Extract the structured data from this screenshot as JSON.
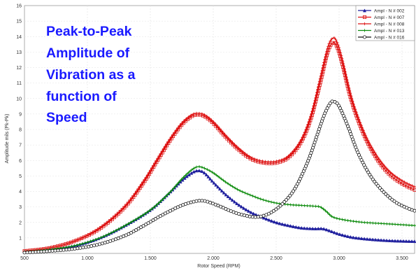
{
  "chart_data": {
    "type": "line",
    "title": "",
    "xlabel": "Rotor Speed (RPM)",
    "ylabel": "Amplitude mils (Pk-Pk)",
    "xlim": [
      500,
      3600
    ],
    "ylim": [
      0,
      16
    ],
    "x_ticks": [
      500,
      1000,
      1500,
      2000,
      2500,
      3000,
      3500
    ],
    "x_tick_labels": [
      "500",
      "1.000",
      "1.500",
      "2.000",
      "2.500",
      "3.000",
      "3.500"
    ],
    "y_ticks": [
      1,
      2,
      3,
      4,
      5,
      6,
      7,
      8,
      9,
      10,
      11,
      12,
      13,
      14,
      15,
      16
    ],
    "y_tick_labels": [
      "1",
      "2",
      "3",
      "4",
      "5",
      "6",
      "7",
      "8",
      "9",
      "10",
      "11",
      "12",
      "13",
      "14",
      "15",
      "16"
    ],
    "grid": true,
    "legend_position": "top-right",
    "annotation": {
      "lines": [
        "Peak-to-Peak",
        "Amplitude of",
        "Vibration as a",
        "function of",
        "Speed"
      ],
      "color": "#1a1aff"
    },
    "series": [
      {
        "name": "Ampl - N # 002",
        "color": "#1f1f9e",
        "marker": "triangle",
        "points": [
          [
            500,
            0.1
          ],
          [
            700,
            0.25
          ],
          [
            900,
            0.5
          ],
          [
            1100,
            1.0
          ],
          [
            1300,
            1.8
          ],
          [
            1500,
            2.8
          ],
          [
            1650,
            3.9
          ],
          [
            1750,
            4.7
          ],
          [
            1830,
            5.2
          ],
          [
            1880,
            5.35
          ],
          [
            1930,
            5.2
          ],
          [
            2000,
            4.6
          ],
          [
            2100,
            3.8
          ],
          [
            2200,
            3.15
          ],
          [
            2300,
            2.65
          ],
          [
            2400,
            2.3
          ],
          [
            2500,
            2.0
          ],
          [
            2600,
            1.8
          ],
          [
            2700,
            1.65
          ],
          [
            2800,
            1.6
          ],
          [
            2870,
            1.6
          ],
          [
            2930,
            1.45
          ],
          [
            3000,
            1.25
          ],
          [
            3100,
            1.05
          ],
          [
            3200,
            0.95
          ],
          [
            3300,
            0.88
          ],
          [
            3400,
            0.83
          ],
          [
            3500,
            0.8
          ],
          [
            3600,
            0.78
          ]
        ]
      },
      {
        "name": "Ampl - N # 007",
        "color": "#dd1111",
        "marker": "square",
        "points": [
          [
            500,
            0.15
          ],
          [
            700,
            0.35
          ],
          [
            900,
            0.8
          ],
          [
            1100,
            1.6
          ],
          [
            1300,
            3.0
          ],
          [
            1450,
            4.6
          ],
          [
            1550,
            5.9
          ],
          [
            1650,
            7.2
          ],
          [
            1750,
            8.3
          ],
          [
            1830,
            8.85
          ],
          [
            1880,
            8.95
          ],
          [
            1930,
            8.85
          ],
          [
            2000,
            8.4
          ],
          [
            2100,
            7.5
          ],
          [
            2200,
            6.7
          ],
          [
            2300,
            6.1
          ],
          [
            2400,
            5.85
          ],
          [
            2500,
            5.85
          ],
          [
            2600,
            6.2
          ],
          [
            2700,
            7.2
          ],
          [
            2780,
            8.8
          ],
          [
            2850,
            11.0
          ],
          [
            2910,
            13.0
          ],
          [
            2950,
            13.6
          ],
          [
            2980,
            13.4
          ],
          [
            3020,
            12.4
          ],
          [
            3100,
            9.8
          ],
          [
            3200,
            7.6
          ],
          [
            3300,
            6.1
          ],
          [
            3400,
            5.1
          ],
          [
            3500,
            4.5
          ],
          [
            3600,
            4.1
          ]
        ]
      },
      {
        "name": "Ampl - N # 008",
        "color": "#dd1111",
        "marker": "plus",
        "points": [
          [
            500,
            0.15
          ],
          [
            700,
            0.35
          ],
          [
            900,
            0.8
          ],
          [
            1100,
            1.65
          ],
          [
            1300,
            3.05
          ],
          [
            1450,
            4.7
          ],
          [
            1550,
            6.0
          ],
          [
            1650,
            7.3
          ],
          [
            1750,
            8.4
          ],
          [
            1830,
            8.95
          ],
          [
            1880,
            9.05
          ],
          [
            1930,
            8.95
          ],
          [
            2000,
            8.5
          ],
          [
            2100,
            7.6
          ],
          [
            2200,
            6.8
          ],
          [
            2300,
            6.2
          ],
          [
            2400,
            5.95
          ],
          [
            2500,
            5.95
          ],
          [
            2600,
            6.3
          ],
          [
            2700,
            7.35
          ],
          [
            2780,
            9.0
          ],
          [
            2850,
            11.3
          ],
          [
            2910,
            13.3
          ],
          [
            2950,
            13.9
          ],
          [
            2980,
            13.7
          ],
          [
            3020,
            12.7
          ],
          [
            3100,
            10.0
          ],
          [
            3200,
            7.8
          ],
          [
            3300,
            6.3
          ],
          [
            3400,
            5.3
          ],
          [
            3500,
            4.7
          ],
          [
            3600,
            4.3
          ]
        ]
      },
      {
        "name": "Ampl - N # 013",
        "color": "#0a8a0a",
        "marker": "plus",
        "points": [
          [
            500,
            0.1
          ],
          [
            700,
            0.25
          ],
          [
            900,
            0.5
          ],
          [
            1100,
            1.0
          ],
          [
            1300,
            1.8
          ],
          [
            1500,
            2.8
          ],
          [
            1650,
            3.9
          ],
          [
            1750,
            4.8
          ],
          [
            1830,
            5.4
          ],
          [
            1880,
            5.6
          ],
          [
            1930,
            5.5
          ],
          [
            2000,
            5.2
          ],
          [
            2100,
            4.6
          ],
          [
            2200,
            4.1
          ],
          [
            2300,
            3.75
          ],
          [
            2400,
            3.45
          ],
          [
            2500,
            3.25
          ],
          [
            2600,
            3.15
          ],
          [
            2700,
            3.1
          ],
          [
            2800,
            3.05
          ],
          [
            2850,
            3.0
          ],
          [
            2900,
            2.7
          ],
          [
            2950,
            2.35
          ],
          [
            3050,
            2.15
          ],
          [
            3200,
            2.0
          ],
          [
            3400,
            1.9
          ],
          [
            3600,
            1.8
          ]
        ]
      },
      {
        "name": "Ampl - N # 016",
        "color": "#111111",
        "marker": "circle",
        "points": [
          [
            500,
            0.05
          ],
          [
            700,
            0.15
          ],
          [
            900,
            0.3
          ],
          [
            1100,
            0.6
          ],
          [
            1300,
            1.15
          ],
          [
            1450,
            1.8
          ],
          [
            1600,
            2.5
          ],
          [
            1750,
            3.1
          ],
          [
            1850,
            3.35
          ],
          [
            1900,
            3.4
          ],
          [
            1950,
            3.35
          ],
          [
            2050,
            3.05
          ],
          [
            2150,
            2.7
          ],
          [
            2250,
            2.45
          ],
          [
            2350,
            2.35
          ],
          [
            2450,
            2.6
          ],
          [
            2550,
            3.2
          ],
          [
            2650,
            4.2
          ],
          [
            2750,
            5.9
          ],
          [
            2820,
            7.5
          ],
          [
            2880,
            8.9
          ],
          [
            2930,
            9.7
          ],
          [
            2960,
            9.8
          ],
          [
            3000,
            9.5
          ],
          [
            3070,
            8.2
          ],
          [
            3150,
            6.5
          ],
          [
            3250,
            5.0
          ],
          [
            3350,
            4.0
          ],
          [
            3450,
            3.3
          ],
          [
            3550,
            2.9
          ],
          [
            3600,
            2.75
          ]
        ]
      }
    ]
  }
}
